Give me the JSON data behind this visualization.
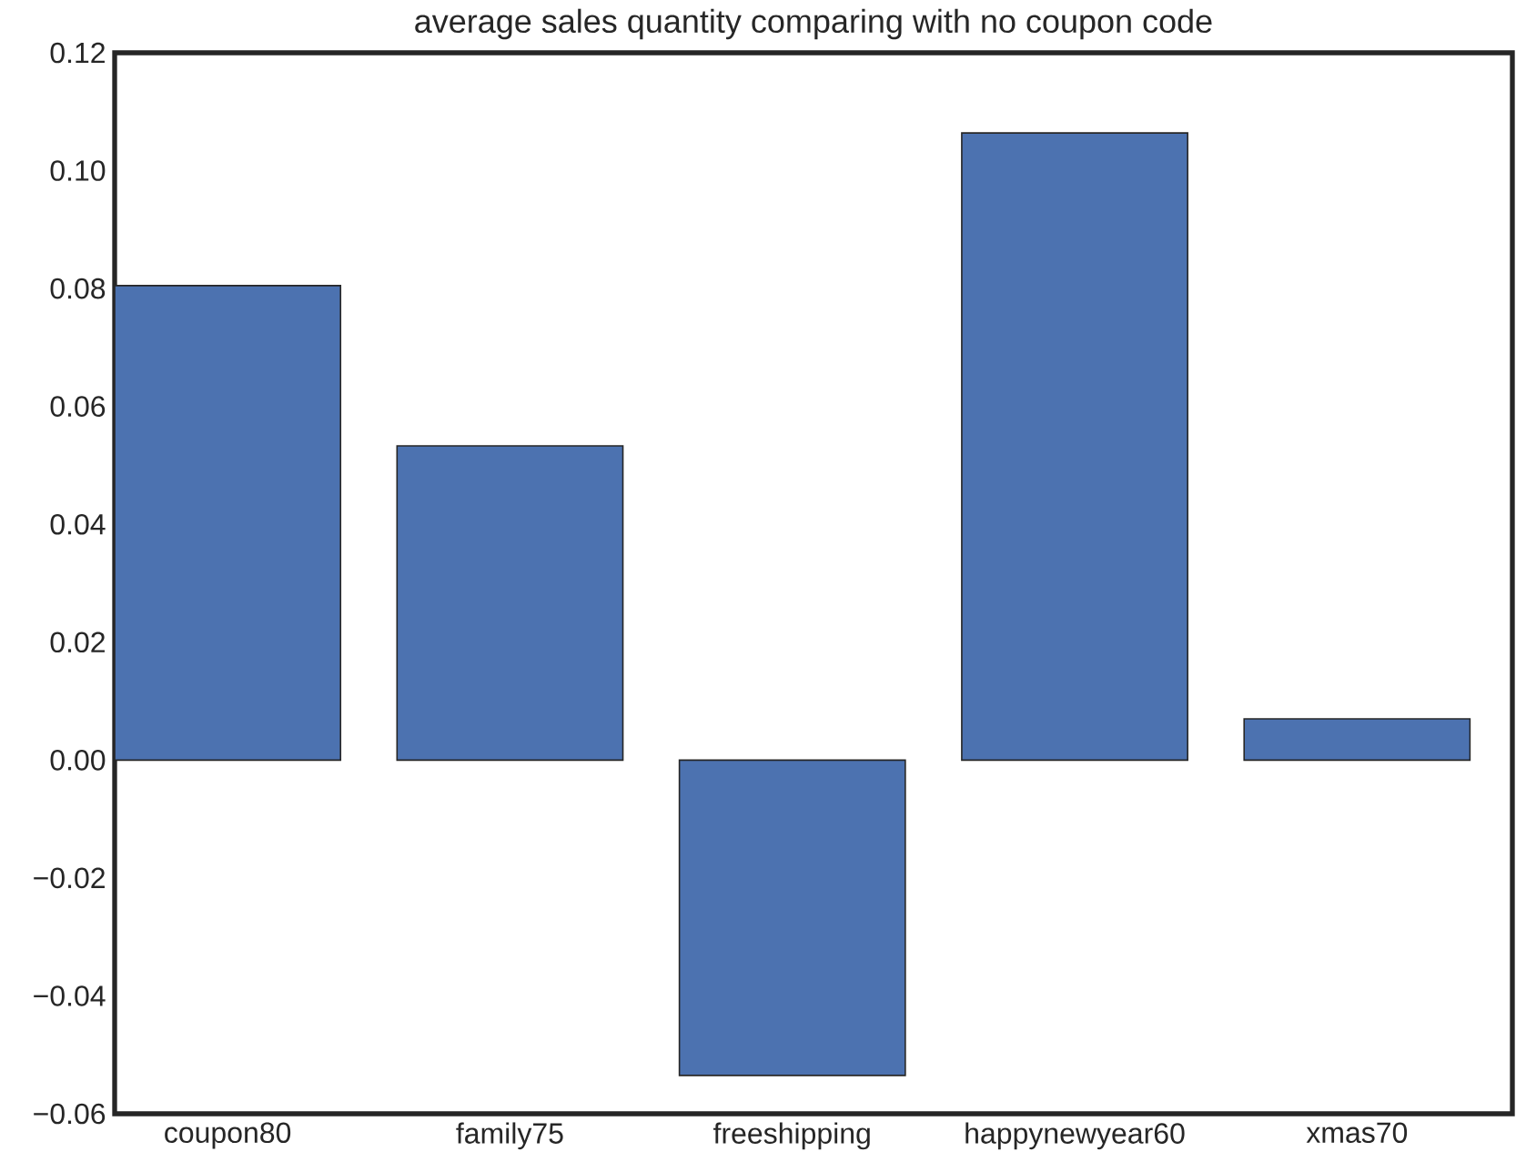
{
  "chart_data": {
    "type": "bar",
    "title": "average sales quantity comparing with no coupon code",
    "categories": [
      "coupon80",
      "family75",
      "freeshipping",
      "happynewyear60",
      "xmas70"
    ],
    "values": [
      0.0805,
      0.0533,
      -0.0535,
      0.1064,
      0.007
    ],
    "color": "#4c72b0",
    "ylim": [
      -0.06,
      0.12
    ],
    "yticks": [
      {
        "value": -0.06,
        "label": "−0.06"
      },
      {
        "value": -0.04,
        "label": "−0.04"
      },
      {
        "value": -0.02,
        "label": "−0.02"
      },
      {
        "value": 0,
        "label": "0.00"
      },
      0.02,
      0.04,
      0.06,
      0.08,
      {
        "value": 0.1,
        "label": "0.10"
      },
      0.12
    ],
    "grid": false
  }
}
